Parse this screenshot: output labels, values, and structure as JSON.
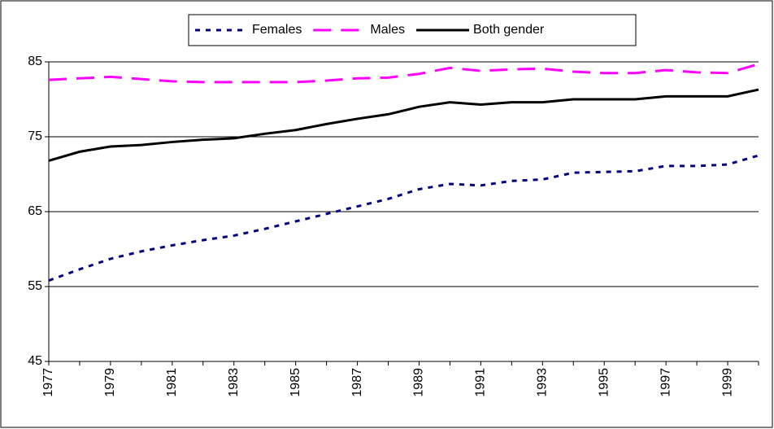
{
  "chart_data": {
    "type": "line",
    "categories": [
      "1977",
      null,
      "1979",
      null,
      "1981",
      null,
      "1983",
      null,
      "1985",
      null,
      "1987",
      null,
      "1989",
      null,
      "1991",
      null,
      "1993",
      null,
      "1995",
      null,
      "1997",
      null,
      "1999",
      null
    ],
    "series": [
      {
        "name": "Females",
        "color": "#000080",
        "style": "dotted",
        "values": [
          55.8,
          57.3,
          58.7,
          59.7,
          60.5,
          61.2,
          61.8,
          62.7,
          63.7,
          64.7,
          65.7,
          66.7,
          68.0,
          68.7,
          68.5,
          69.1,
          69.3,
          70.2,
          70.3,
          70.4,
          71.1,
          71.1,
          71.3,
          72.5
        ]
      },
      {
        "name": "Males",
        "color": "#ff00ff",
        "style": "dashed",
        "values": [
          82.6,
          82.8,
          83.0,
          82.7,
          82.4,
          82.3,
          82.3,
          82.3,
          82.3,
          82.5,
          82.8,
          82.9,
          83.4,
          84.2,
          83.8,
          84.0,
          84.1,
          83.7,
          83.5,
          83.5,
          83.9,
          83.6,
          83.5,
          84.7
        ]
      },
      {
        "name": "Both gender",
        "color": "#000000",
        "style": "solid",
        "values": [
          71.8,
          73.0,
          73.7,
          73.9,
          74.3,
          74.6,
          74.8,
          75.4,
          75.9,
          76.7,
          77.4,
          78.0,
          79.0,
          79.6,
          79.3,
          79.6,
          79.6,
          80.0,
          80.0,
          80.0,
          80.4,
          80.4,
          80.4,
          81.3
        ]
      }
    ],
    "ylim": [
      45,
      85
    ],
    "yticks": [
      45,
      55,
      65,
      75,
      85
    ],
    "grid": true,
    "legend": "top"
  }
}
